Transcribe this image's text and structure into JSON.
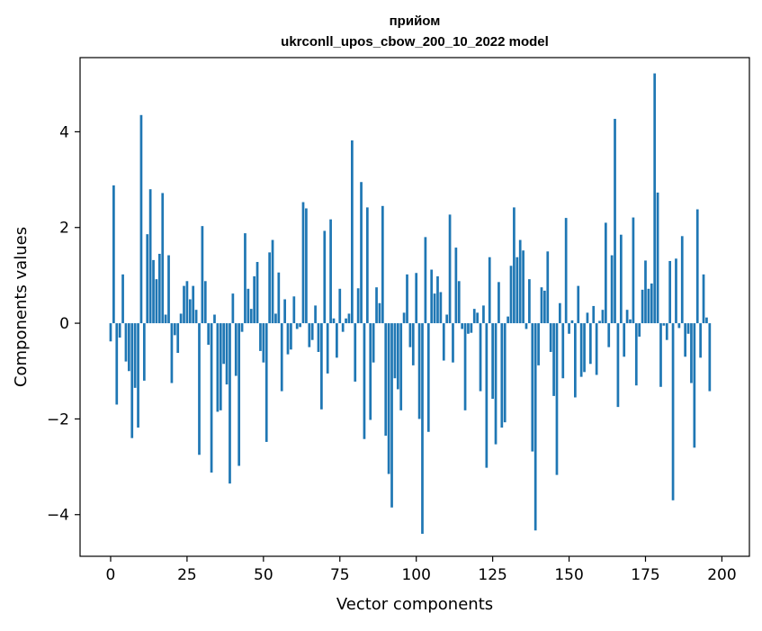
{
  "chart_data": {
    "type": "bar",
    "title_line1": "прийом",
    "title_line2": "ukrconll_upos_cbow_200_10_2022 model",
    "xlabel": "Vector components",
    "ylabel": "Components values",
    "xlim": [
      -10,
      209
    ],
    "ylim": [
      -4.87,
      5.55
    ],
    "xticks": [
      0,
      25,
      50,
      75,
      100,
      125,
      150,
      175,
      200
    ],
    "yticks": [
      -4,
      -2,
      0,
      2,
      4
    ],
    "ytick_labels": [
      "−4",
      "−2",
      "0",
      "2",
      "4"
    ],
    "bar_color": "#1f77b4",
    "grid": false,
    "values": [
      -0.38,
      2.88,
      -1.7,
      -0.3,
      1.02,
      -0.8,
      -1.0,
      -2.4,
      -1.35,
      -2.18,
      4.35,
      -1.2,
      1.86,
      2.8,
      1.32,
      0.92,
      1.45,
      2.72,
      0.18,
      1.42,
      -1.25,
      -0.25,
      -0.62,
      0.2,
      0.78,
      0.88,
      0.5,
      0.78,
      0.28,
      -2.75,
      2.03,
      0.88,
      -0.45,
      -3.12,
      0.18,
      -1.85,
      -1.82,
      -0.85,
      -1.28,
      -3.35,
      0.62,
      -1.1,
      -2.98,
      -0.18,
      1.88,
      0.72,
      0.3,
      0.98,
      1.28,
      -0.58,
      -0.82,
      -2.48,
      1.48,
      1.74,
      0.2,
      1.06,
      -1.42,
      0.5,
      -0.65,
      -0.55,
      0.56,
      -0.12,
      -0.08,
      2.53,
      2.4,
      -0.5,
      -0.35,
      0.37,
      -0.6,
      -1.8,
      1.93,
      -1.05,
      2.17,
      0.1,
      -0.72,
      0.72,
      -0.18,
      0.1,
      0.2,
      3.82,
      -1.22,
      0.73,
      2.95,
      -2.42,
      2.42,
      -2.02,
      -0.82,
      0.75,
      0.42,
      2.45,
      -2.35,
      -3.15,
      -3.85,
      -1.15,
      -1.38,
      -1.82,
      0.22,
      1.02,
      -0.5,
      -0.88,
      1.05,
      -2.0,
      -4.4,
      1.8,
      -2.27,
      1.12,
      0.62,
      0.98,
      0.65,
      -0.78,
      0.18,
      2.27,
      -0.82,
      1.58,
      0.88,
      -0.12,
      -1.82,
      -0.22,
      -0.2,
      0.3,
      0.22,
      -1.42,
      0.37,
      -3.02,
      1.38,
      -1.58,
      -2.53,
      0.86,
      -2.18,
      -2.07,
      0.14,
      1.2,
      2.42,
      1.38,
      1.74,
      1.52,
      -0.12,
      0.92,
      -2.68,
      -4.33,
      -0.88,
      0.75,
      0.68,
      1.5,
      -0.6,
      -1.52,
      -3.17,
      0.42,
      -1.15,
      2.2,
      -0.22,
      0.06,
      -1.55,
      0.78,
      -1.12,
      -1.02,
      0.22,
      -0.85,
      0.36,
      -1.08,
      0.05,
      0.28,
      2.1,
      -0.5,
      1.42,
      4.27,
      -1.75,
      1.85,
      -0.7,
      0.28,
      0.08,
      2.21,
      -1.3,
      -0.28,
      0.7,
      1.31,
      0.72,
      0.83,
      5.22,
      2.73,
      -1.33,
      -0.05,
      -0.35,
      1.3,
      -3.7,
      1.35,
      -0.1,
      1.82,
      -0.7,
      -0.22,
      -1.25,
      -2.6,
      2.38,
      -0.72,
      1.02,
      0.12,
      -1.42
    ]
  }
}
